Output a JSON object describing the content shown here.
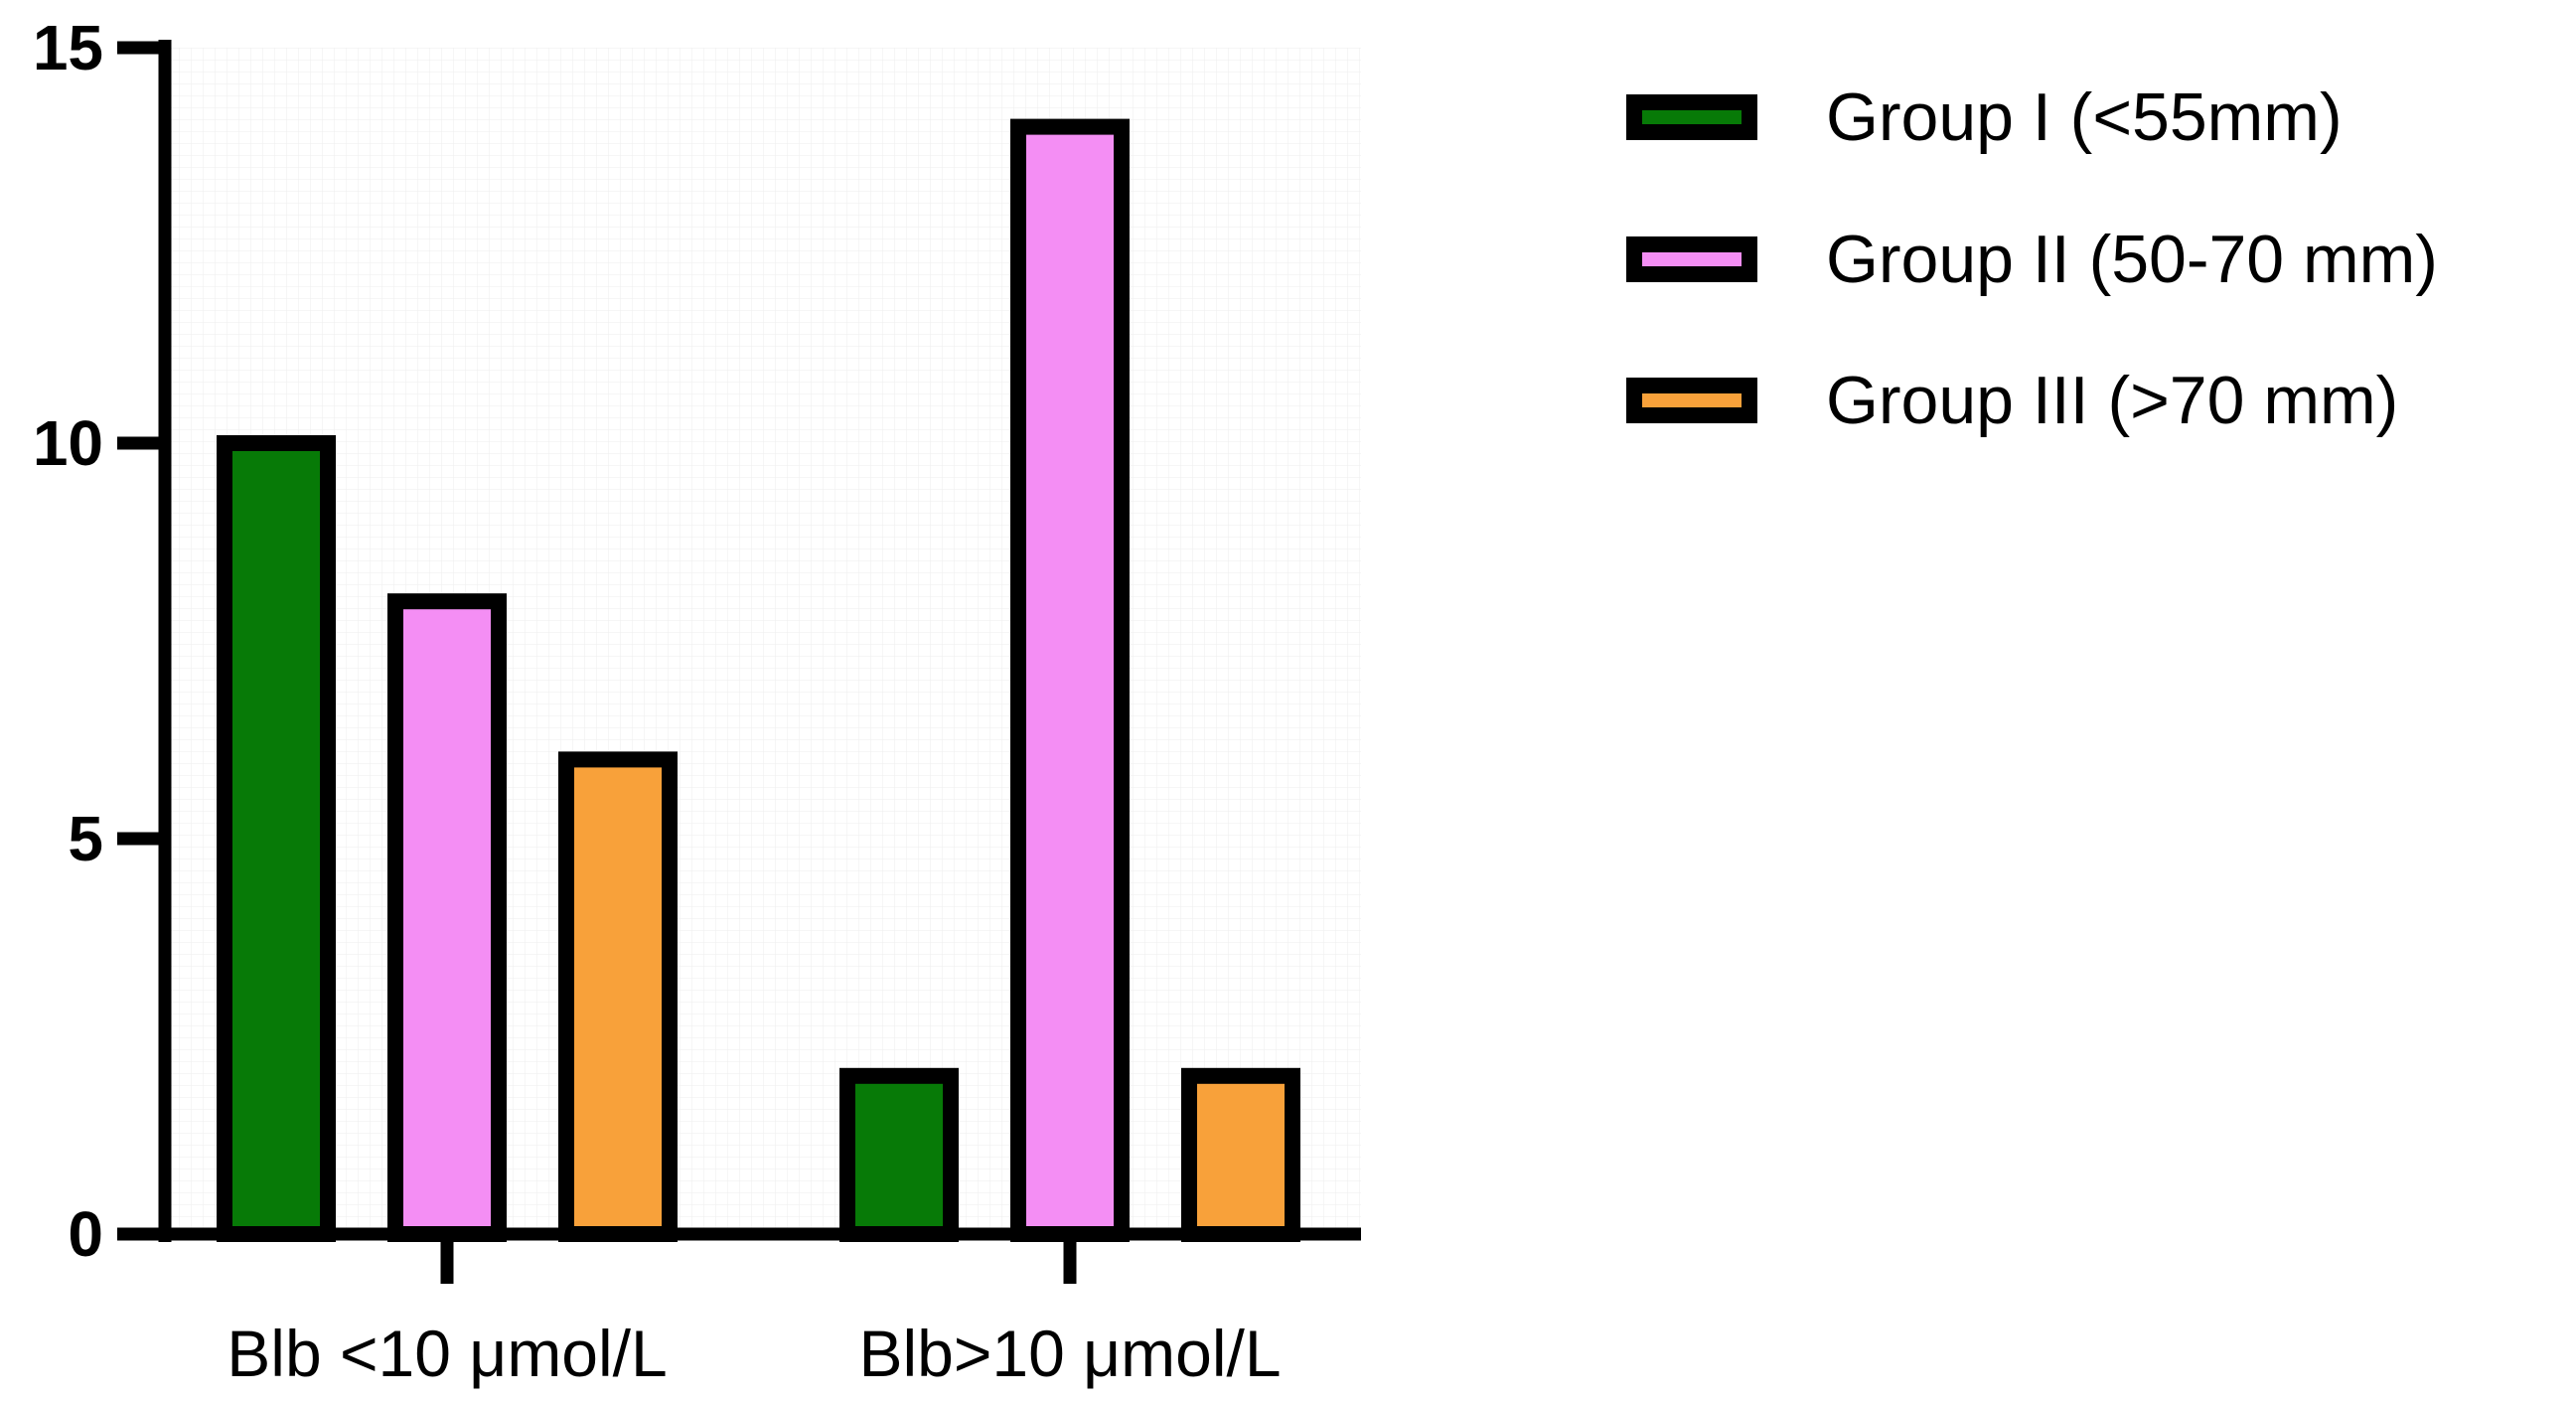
{
  "chart_data": {
    "type": "bar",
    "title": "",
    "xlabel": "",
    "ylabel": "",
    "ylim": [
      0,
      15
    ],
    "yticks": [
      0,
      5,
      10,
      15
    ],
    "ytick_labels": [
      "0",
      "5",
      "10",
      "15"
    ],
    "grid": true,
    "legend_position": "top-right",
    "categories": [
      "Blb <10 μmol/L",
      "Blb>10 μmol/L"
    ],
    "series": [
      {
        "name": "Group I (<55mm)",
        "color": "#077a07",
        "values": [
          10,
          2
        ]
      },
      {
        "name": "Group II (50-70 mm)",
        "color": "#f48ef4",
        "values": [
          8,
          14
        ]
      },
      {
        "name": "Group III (>70 mm)",
        "color": "#f8a13a",
        "values": [
          6,
          2
        ]
      }
    ]
  }
}
